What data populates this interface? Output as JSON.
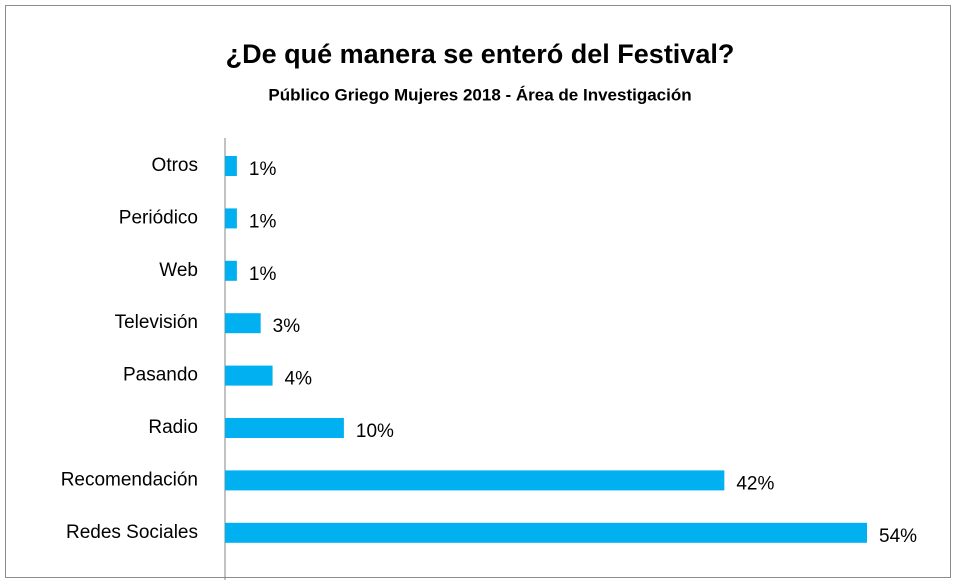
{
  "chart_data": {
    "type": "bar",
    "orientation": "horizontal",
    "title": "¿De qué manera se enteró del Festival?",
    "subtitle": "Público Griego Mujeres 2018 - Área de Investigación",
    "categories": [
      "Otros",
      "Periódico",
      "Web",
      "Televisión",
      "Pasando",
      "Radio",
      "Recomendación",
      "Redes Sociales"
    ],
    "values": [
      1,
      1,
      1,
      3,
      4,
      10,
      42,
      54
    ],
    "value_labels": [
      "1%",
      "1%",
      "1%",
      "3%",
      "4%",
      "10%",
      "42%",
      "54%"
    ],
    "color": "#00b0f0"
  }
}
